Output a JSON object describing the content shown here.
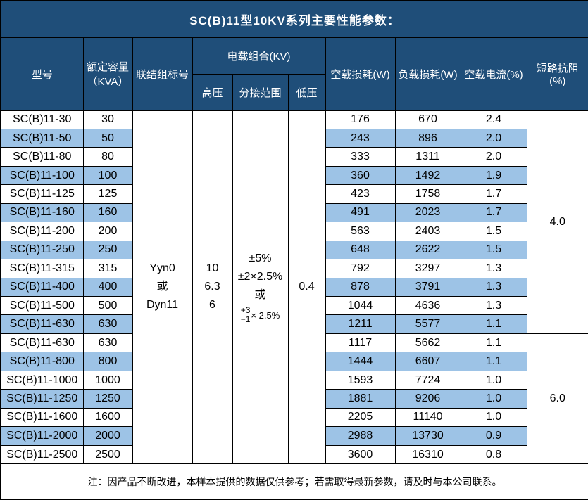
{
  "title": "SC(B)11型10KV系列主要性能参数：",
  "colors": {
    "header_bg": "#1F4E79",
    "band_bg": "#9DC3E6",
    "border": "#000000",
    "header_text": "#FFFFFF",
    "body_text": "#000000"
  },
  "header": {
    "model": "型号",
    "capacity_line1": "额定容量",
    "capacity_line2": "（KVA）",
    "connection_group": "联结组标号",
    "voltage_combo": "电载组合(KV)",
    "high_voltage": "高压",
    "tap_range": "分接范围",
    "low_voltage": "低压",
    "no_load_loss": "空载损耗(W)",
    "load_loss": "负载损耗(W)",
    "no_load_current": "空载电流(%)",
    "impedance": "短路抗阻(%)"
  },
  "merged": {
    "connection_group_lines": [
      "Yyn0",
      "或",
      "Dyn11"
    ],
    "high_voltage_lines": [
      "10",
      "6.3",
      "6"
    ],
    "tap_range_lines": [
      "±5%",
      "±2×2.5%",
      "或"
    ],
    "tap_range_stack_top": "+3",
    "tap_range_stack_bottom": "−1",
    "tap_range_stack_suffix": "× 2.5%",
    "low_voltage": "0.4",
    "impedance_group1_value": "4.0",
    "impedance_group1_rows": 12,
    "impedance_group2_value": "6.0",
    "impedance_group2_rows": 7
  },
  "rows": [
    {
      "model": "SC(B)11-30",
      "capacity": "30",
      "no_load_loss": "176",
      "load_loss": "670",
      "no_load_current": "2.4"
    },
    {
      "model": "SC(B)11-50",
      "capacity": "50",
      "no_load_loss": "243",
      "load_loss": "896",
      "no_load_current": "2.0"
    },
    {
      "model": "SC(B)11-80",
      "capacity": "80",
      "no_load_loss": "333",
      "load_loss": "1311",
      "no_load_current": "2.0"
    },
    {
      "model": "SC(B)11-100",
      "capacity": "100",
      "no_load_loss": "360",
      "load_loss": "1492",
      "no_load_current": "1.9"
    },
    {
      "model": "SC(B)11-125",
      "capacity": "125",
      "no_load_loss": "423",
      "load_loss": "1758",
      "no_load_current": "1.7"
    },
    {
      "model": "SC(B)11-160",
      "capacity": "160",
      "no_load_loss": "491",
      "load_loss": "2023",
      "no_load_current": "1.7"
    },
    {
      "model": "SC(B)11-200",
      "capacity": "200",
      "no_load_loss": "563",
      "load_loss": "2403",
      "no_load_current": "1.5"
    },
    {
      "model": "SC(B)11-250",
      "capacity": "250",
      "no_load_loss": "648",
      "load_loss": "2622",
      "no_load_current": "1.5"
    },
    {
      "model": "SC(B)11-315",
      "capacity": "315",
      "no_load_loss": "792",
      "load_loss": "3297",
      "no_load_current": "1.3"
    },
    {
      "model": "SC(B)11-400",
      "capacity": "400",
      "no_load_loss": "878",
      "load_loss": "3791",
      "no_load_current": "1.3"
    },
    {
      "model": "SC(B)11-500",
      "capacity": "500",
      "no_load_loss": "1044",
      "load_loss": "4636",
      "no_load_current": "1.3"
    },
    {
      "model": "SC(B)11-630",
      "capacity": "630",
      "no_load_loss": "1211",
      "load_loss": "5577",
      "no_load_current": "1.1"
    },
    {
      "model": "SC(B)11-630",
      "capacity": "630",
      "no_load_loss": "1117",
      "load_loss": "5662",
      "no_load_current": "1.1"
    },
    {
      "model": "SC(B)11-800",
      "capacity": "800",
      "no_load_loss": "1444",
      "load_loss": "6607",
      "no_load_current": "1.1"
    },
    {
      "model": "SC(B)11-1000",
      "capacity": "1000",
      "no_load_loss": "1593",
      "load_loss": "7724",
      "no_load_current": "1.0"
    },
    {
      "model": "SC(B)11-1250",
      "capacity": "1250",
      "no_load_loss": "1881",
      "load_loss": "9206",
      "no_load_current": "1.0"
    },
    {
      "model": "SC(B)11-1600",
      "capacity": "1600",
      "no_load_loss": "2205",
      "load_loss": "11140",
      "no_load_current": "1.0"
    },
    {
      "model": "SC(B)11-2000",
      "capacity": "2000",
      "no_load_loss": "2988",
      "load_loss": "13730",
      "no_load_current": "0.9"
    },
    {
      "model": "SC(B)11-2500",
      "capacity": "2500",
      "no_load_loss": "3600",
      "load_loss": "16310",
      "no_load_current": "0.8"
    }
  ],
  "footer_note": "注：因产品不断改进，本样本提供的数据仅供参考；若需取得最新参数，请及时与本公司联系。"
}
